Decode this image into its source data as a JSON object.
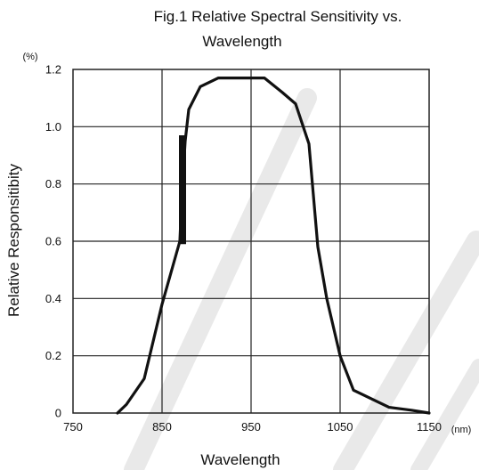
{
  "chart_data": {
    "type": "line",
    "title_line1": "Fig.1 Relative Spectral Sensitivity vs.",
    "title_line2": "Wavelength",
    "xlabel": "Wavelength",
    "ylabel": "Relative Responsitibity",
    "y_unit": "(%)",
    "x_unit": "(nm)",
    "xlim": [
      750,
      1150
    ],
    "ylim": [
      0,
      1.2
    ],
    "x_ticks": [
      "750",
      "850",
      "950",
      "1050",
      "1150"
    ],
    "y_ticks": [
      "0",
      "0.2",
      "0.4",
      "0.6",
      "0.8",
      "1.0",
      "1.2"
    ],
    "grid": true,
    "colors": {
      "line": "#111111",
      "grid": "#222222",
      "watermark": "#e9e9e9"
    },
    "series": [
      {
        "x": [
          800,
          810,
          830,
          850,
          870,
          872,
          876,
          880,
          893,
          913,
          930,
          950,
          965,
          985,
          1000,
          1015,
          1025,
          1035,
          1050,
          1065,
          1085,
          1105,
          1130,
          1150
        ],
        "y": [
          0.0,
          0.03,
          0.12,
          0.38,
          0.6,
          0.74,
          0.95,
          1.06,
          1.14,
          1.17,
          1.17,
          1.17,
          1.17,
          1.12,
          1.08,
          0.94,
          0.58,
          0.4,
          0.2,
          0.08,
          0.05,
          0.02,
          0.01,
          0.0
        ]
      }
    ],
    "annotations": [
      {
        "type": "vertical-bar",
        "x": 873,
        "y_top": 0.97,
        "y_bottom": 0.59
      }
    ]
  }
}
